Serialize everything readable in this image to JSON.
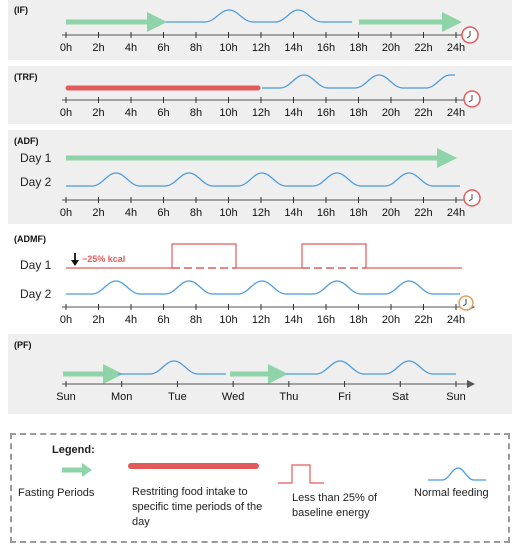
{
  "panels": [
    {
      "label": "(IF)",
      "ticks": [
        "0h",
        "2h",
        "4h",
        "6h",
        "8h",
        "10h",
        "12h",
        "14h",
        "16h",
        "18h",
        "20h",
        "22h",
        "24h"
      ]
    },
    {
      "label": "(TRF)",
      "ticks": [
        "0h",
        "2h",
        "4h",
        "6h",
        "8h",
        "10h",
        "12h",
        "14h",
        "16h",
        "18h",
        "20h",
        "22h",
        "24h"
      ]
    },
    {
      "label": "(ADF)",
      "day1": "Day 1",
      "day2": "Day 2",
      "ticks": [
        "0h",
        "2h",
        "4h",
        "6h",
        "8h",
        "10h",
        "12h",
        "14h",
        "16h",
        "18h",
        "20h",
        "22h",
        "24h"
      ]
    },
    {
      "label": "(ADMF)",
      "day1": "Day 1",
      "day2": "Day 2",
      "kcal": "−25% kcal",
      "ticks": [
        "0h",
        "2h",
        "4h",
        "6h",
        "8h",
        "10h",
        "12h",
        "14h",
        "16h",
        "18h",
        "20h",
        "22h",
        "24h"
      ]
    },
    {
      "label": "(PF)",
      "ticks": [
        "Sun",
        "Mon",
        "Tue",
        "Wed",
        "Thu",
        "Fri",
        "Sat",
        "Sun"
      ]
    }
  ],
  "legend": {
    "title": "Legend:",
    "fasting": "Fasting Periods",
    "restrict": "Restriting food intake to specific time periods of the day",
    "less": "Less than 25% of baseline energy",
    "normal": "Normal feeding"
  },
  "colors": {
    "green": "#8fd3a8",
    "red": "#e35a5a",
    "blue": "#4a9be0",
    "clock": "#e35a5a",
    "bg": "#efefef"
  }
}
